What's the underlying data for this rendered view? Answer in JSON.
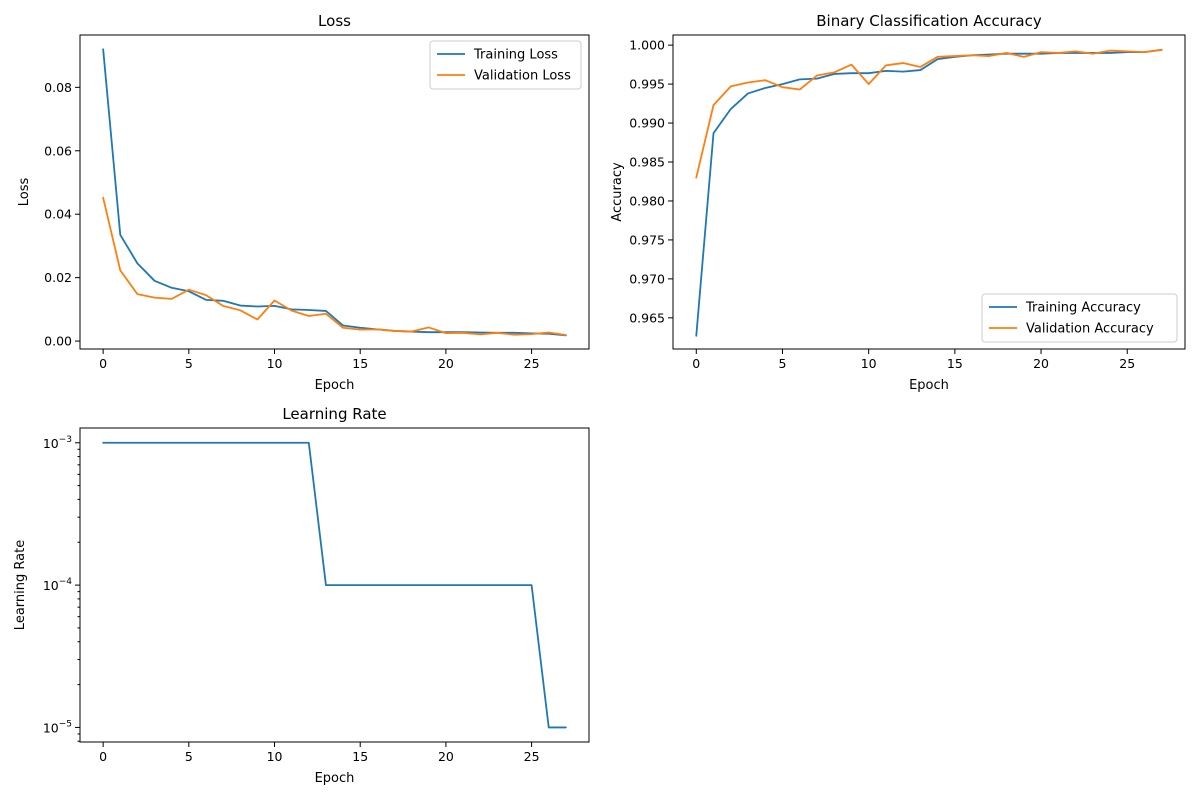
{
  "chart_data": [
    {
      "type": "line",
      "title": "Loss",
      "xlabel": "Epoch",
      "ylabel": "Loss",
      "xlim": [
        -1.35,
        28.35
      ],
      "ylim": [
        -0.0025,
        0.0965
      ],
      "xticks": [
        0,
        5,
        10,
        15,
        20,
        25
      ],
      "xtick_labels": [
        "0",
        "5",
        "10",
        "15",
        "20",
        "25"
      ],
      "yticks": [
        0.0,
        0.02,
        0.04,
        0.06,
        0.08
      ],
      "ytick_labels": [
        "0.00",
        "0.02",
        "0.04",
        "0.06",
        "0.08"
      ],
      "yscale": "linear",
      "legend": "top-right",
      "x": [
        0,
        1,
        2,
        3,
        4,
        5,
        6,
        7,
        8,
        9,
        10,
        11,
        12,
        13,
        14,
        15,
        16,
        17,
        18,
        19,
        20,
        21,
        22,
        23,
        24,
        25,
        26,
        27
      ],
      "series": [
        {
          "name": "Training Loss",
          "color": "#1f77b4",
          "values": [
            0.092,
            0.0335,
            0.0245,
            0.019,
            0.0168,
            0.0157,
            0.013,
            0.0127,
            0.0112,
            0.0109,
            0.0111,
            0.01,
            0.0098,
            0.0095,
            0.0049,
            0.0042,
            0.0037,
            0.0032,
            0.003,
            0.0028,
            0.0028,
            0.0028,
            0.0027,
            0.0026,
            0.0026,
            0.0024,
            0.0023,
            0.0018
          ]
        },
        {
          "name": "Validation Loss",
          "color": "#ff7f0e",
          "values": [
            0.0452,
            0.0223,
            0.0148,
            0.0137,
            0.0133,
            0.0162,
            0.0145,
            0.0111,
            0.0097,
            0.0068,
            0.0128,
            0.0096,
            0.0079,
            0.0086,
            0.0042,
            0.0036,
            0.0037,
            0.0032,
            0.003,
            0.0043,
            0.0025,
            0.0026,
            0.0021,
            0.0026,
            0.002,
            0.0022,
            0.0027,
            0.0019
          ]
        }
      ]
    },
    {
      "type": "line",
      "title": "Binary Classification Accuracy",
      "xlabel": "Epoch",
      "ylabel": "Accuracy",
      "xlim": [
        -1.35,
        28.35
      ],
      "ylim": [
        0.961,
        1.0013
      ],
      "xticks": [
        0,
        5,
        10,
        15,
        20,
        25
      ],
      "xtick_labels": [
        "0",
        "5",
        "10",
        "15",
        "20",
        "25"
      ],
      "yticks": [
        0.965,
        0.97,
        0.975,
        0.98,
        0.985,
        0.99,
        0.995,
        1.0
      ],
      "ytick_labels": [
        "0.965",
        "0.970",
        "0.975",
        "0.980",
        "0.985",
        "0.990",
        "0.995",
        "1.000"
      ],
      "yscale": "linear",
      "legend": "bottom-right",
      "x": [
        0,
        1,
        2,
        3,
        4,
        5,
        6,
        7,
        8,
        9,
        10,
        11,
        12,
        13,
        14,
        15,
        16,
        17,
        18,
        19,
        20,
        21,
        22,
        23,
        24,
        25,
        26,
        27
      ],
      "series": [
        {
          "name": "Training Accuracy",
          "color": "#1f77b4",
          "values": [
            0.9627,
            0.9887,
            0.9918,
            0.9938,
            0.9945,
            0.995,
            0.9956,
            0.9957,
            0.9963,
            0.9964,
            0.9964,
            0.9967,
            0.9966,
            0.9968,
            0.9982,
            0.9985,
            0.9987,
            0.9988,
            0.9989,
            0.9989,
            0.9989,
            0.999,
            0.999,
            0.999,
            0.999,
            0.9991,
            0.9991,
            0.9994
          ]
        },
        {
          "name": "Validation Accuracy",
          "color": "#ff7f0e",
          "values": [
            0.983,
            0.9923,
            0.9947,
            0.9952,
            0.9955,
            0.9946,
            0.9943,
            0.9961,
            0.9965,
            0.9975,
            0.995,
            0.9974,
            0.9977,
            0.9972,
            0.9985,
            0.9986,
            0.9987,
            0.9986,
            0.999,
            0.9985,
            0.9991,
            0.999,
            0.9992,
            0.9989,
            0.9993,
            0.9992,
            0.9991,
            0.9994
          ]
        }
      ]
    },
    {
      "type": "line",
      "title": "Learning Rate",
      "xlabel": "Epoch",
      "ylabel": "Learning Rate",
      "xlim": [
        -1.35,
        28.35
      ],
      "ylim": [
        7.9e-06,
        0.00127
      ],
      "yscale": "log",
      "xticks": [
        0,
        5,
        10,
        15,
        20,
        25
      ],
      "xtick_labels": [
        "0",
        "5",
        "10",
        "15",
        "20",
        "25"
      ],
      "yticks": [
        0.001,
        0.0001,
        1e-05
      ],
      "ytick_labels": [
        {
          "base": "10",
          "exp": "−3"
        },
        {
          "base": "10",
          "exp": "−4"
        },
        {
          "base": "10",
          "exp": "−5"
        }
      ],
      "x": [
        0,
        1,
        2,
        3,
        4,
        5,
        6,
        7,
        8,
        9,
        10,
        11,
        12,
        13,
        14,
        15,
        16,
        17,
        18,
        19,
        20,
        21,
        22,
        23,
        24,
        25,
        26,
        27
      ],
      "series": [
        {
          "color": "#1f77b4",
          "values": [
            0.001,
            0.001,
            0.001,
            0.001,
            0.001,
            0.001,
            0.001,
            0.001,
            0.001,
            0.001,
            0.001,
            0.001,
            0.001,
            0.0001,
            0.0001,
            0.0001,
            0.0001,
            0.0001,
            0.0001,
            0.0001,
            0.0001,
            0.0001,
            0.0001,
            0.0001,
            0.0001,
            0.0001,
            1e-05,
            1e-05
          ]
        }
      ]
    }
  ]
}
